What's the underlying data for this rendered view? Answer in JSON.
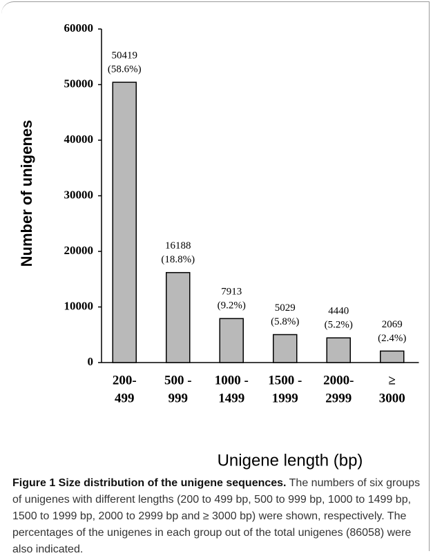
{
  "chart_data": {
    "type": "bar",
    "categories": [
      [
        "200-",
        "499"
      ],
      [
        "500 -",
        "999"
      ],
      [
        "1000 -",
        "1499"
      ],
      [
        "1500 -",
        "1999"
      ],
      [
        "2000-",
        "2999"
      ],
      [
        "≥",
        "3000"
      ]
    ],
    "values": [
      50419,
      16188,
      7913,
      5029,
      4440,
      2069
    ],
    "percent_labels": [
      "(58.6%)",
      "(18.8%)",
      "(9.2%)",
      "(5.8%)",
      "(5.2%)",
      "(2.4%)"
    ],
    "color": "#b9b9b9",
    "ylim": [
      0,
      60000
    ],
    "yticks": [
      0,
      10000,
      20000,
      30000,
      40000,
      50000,
      60000
    ],
    "xlabel": "Unigene length (bp)",
    "ylabel": "Number of unigenes"
  },
  "caption": {
    "label": "Figure 1 Size distribution of the unigene sequences.",
    "text": "The numbers of six groups of unigenes with different lengths (200 to 499 bp, 500 to 999 bp, 1000 to 1499 bp, 1500 to 1999 bp, 2000 to 2999 bp and ≥ 3000 bp) were shown, respectively. The percentages of the unigenes in each group out of the total unigenes (86058) were also indicated."
  }
}
